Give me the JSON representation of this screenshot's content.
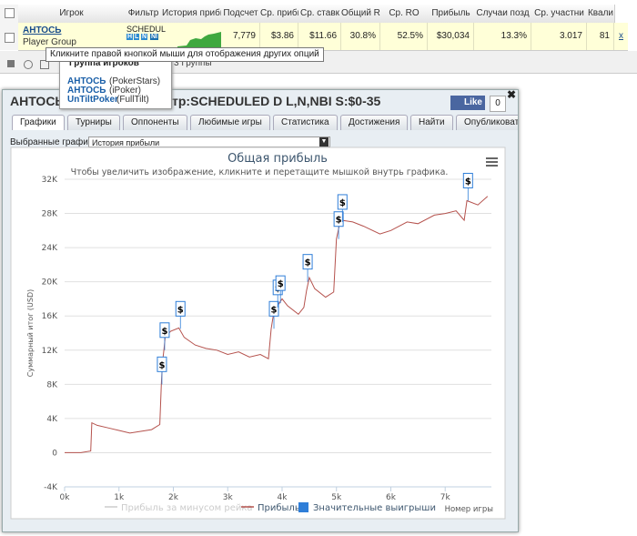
{
  "table": {
    "headers": [
      "Игрок",
      "Фильтр",
      "История прибы",
      "Подсчет",
      "Ср. прибы",
      "Ср. ставк",
      "Общий ROI",
      "Ср. RO",
      "Прибыль",
      "Случаи позд",
      "Ср. участни",
      "Квали"
    ],
    "row": {
      "player": "АНТОСЬ",
      "group": "Player Group",
      "filter": "SCHEDUL",
      "badges": [
        "H",
        "L",
        "N",
        "NI"
      ],
      "cells": [
        "7,779",
        "$3.86",
        "$11.66",
        "30.8%",
        "52.5%",
        "$30,034",
        "13.3%",
        "3.017",
        "81"
      ],
      "remove": "x"
    }
  },
  "tooltip": "Кликните правой кнопкой мыши для отображения других опций",
  "menu": {
    "title": "Группа игроков",
    "items": [
      {
        "name": "АНТОСЬ",
        "site": "(PokerStars)"
      },
      {
        "name": "АНТОСЬ",
        "site": "(iPoker)"
      },
      {
        "name": "UnTiltPoker",
        "site": "(FullTilt)"
      }
    ]
  },
  "groups_label": "3 Группы",
  "dialog": {
    "title_start": "АНТОСЬ",
    "title_end": "тр:SCHEDULED D L,N,NBI S:$0-35",
    "like": "Like",
    "like_count": "0",
    "tabs": [
      "Графики",
      "Турниры",
      "Оппоненты",
      "Любимые игры",
      "Статистика",
      "Достижения",
      "Найти",
      "Опубликовать"
    ],
    "select_label": "Выбранные графики:",
    "select_value": "История прибыли"
  },
  "chart_data": {
    "type": "line",
    "title": "Общая прибыль",
    "subtitle": "Чтобы увеличить изображение, кликните и перетащите мышкой внутрь графика.",
    "y_label": "Суммарный итог (USD)",
    "x_label": "Номер игры",
    "xlim": [
      0,
      7850
    ],
    "xticks": [
      {
        "value": 0,
        "label": "0k"
      },
      {
        "value": 1000,
        "label": "1k"
      },
      {
        "value": 2000,
        "label": "2k"
      },
      {
        "value": 3000,
        "label": "3k"
      },
      {
        "value": 4000,
        "label": "4k"
      },
      {
        "value": 5000,
        "label": "5k"
      },
      {
        "value": 6000,
        "label": "6k"
      },
      {
        "value": 7000,
        "label": "7k"
      }
    ],
    "ylim": [
      -4000,
      32000
    ],
    "yticks": [
      {
        "value": -4000,
        "label": "-4K"
      },
      0,
      {
        "value": 4000,
        "label": "4K"
      },
      {
        "value": 8000,
        "label": "8K"
      },
      {
        "value": 12000,
        "label": "12K"
      },
      {
        "value": 16000,
        "label": "16K"
      },
      {
        "value": 20000,
        "label": "20K"
      },
      {
        "value": 24000,
        "label": "24K"
      },
      {
        "value": 28000,
        "label": "28K"
      },
      {
        "value": 32000,
        "label": "32K"
      }
    ],
    "grid": true,
    "series": [
      {
        "name": "Прибыль за минусом рейка",
        "color": "#cccccc",
        "visible": false
      },
      {
        "name": "Прибыль",
        "color": "#b5524d",
        "x": [
          0,
          300,
          480,
          500,
          600,
          800,
          1000,
          1200,
          1400,
          1600,
          1750,
          1780,
          1800,
          1830,
          1850,
          1950,
          2100,
          2200,
          2400,
          2600,
          2800,
          3000,
          3200,
          3400,
          3600,
          3750,
          3800,
          3850,
          3900,
          4000,
          4100,
          4300,
          4400,
          4450,
          4500,
          4600,
          4800,
          4950,
          5000,
          5050,
          5100,
          5300,
          5500,
          5800,
          6000,
          6300,
          6500,
          6800,
          7000,
          7200,
          7350,
          7400,
          7600,
          7779
        ],
        "values": [
          0,
          0,
          200,
          3500,
          3200,
          2900,
          2600,
          2300,
          2500,
          2700,
          3300,
          8000,
          10500,
          12200,
          13500,
          14200,
          14600,
          13500,
          12600,
          12200,
          12000,
          11500,
          11800,
          11200,
          11500,
          11000,
          14500,
          16500,
          17000,
          18000,
          17200,
          16200,
          17000,
          19000,
          20500,
          19200,
          18200,
          18800,
          25000,
          26500,
          27200,
          27000,
          26500,
          25600,
          26000,
          27000,
          26800,
          27800,
          28000,
          28300,
          27200,
          29500,
          29000,
          30000
        ]
      },
      {
        "name": "Значительные выигрыши",
        "color": "#2f7ed8",
        "type": "flags",
        "flag_text": "$",
        "x": [
          1790,
          1840,
          2130,
          3850,
          3920,
          3970,
          4470,
          5040,
          5110,
          7420
        ],
        "values": [
          8000,
          12000,
          14500,
          14500,
          17000,
          17500,
          20000,
          25000,
          27000,
          29500
        ]
      }
    ]
  }
}
